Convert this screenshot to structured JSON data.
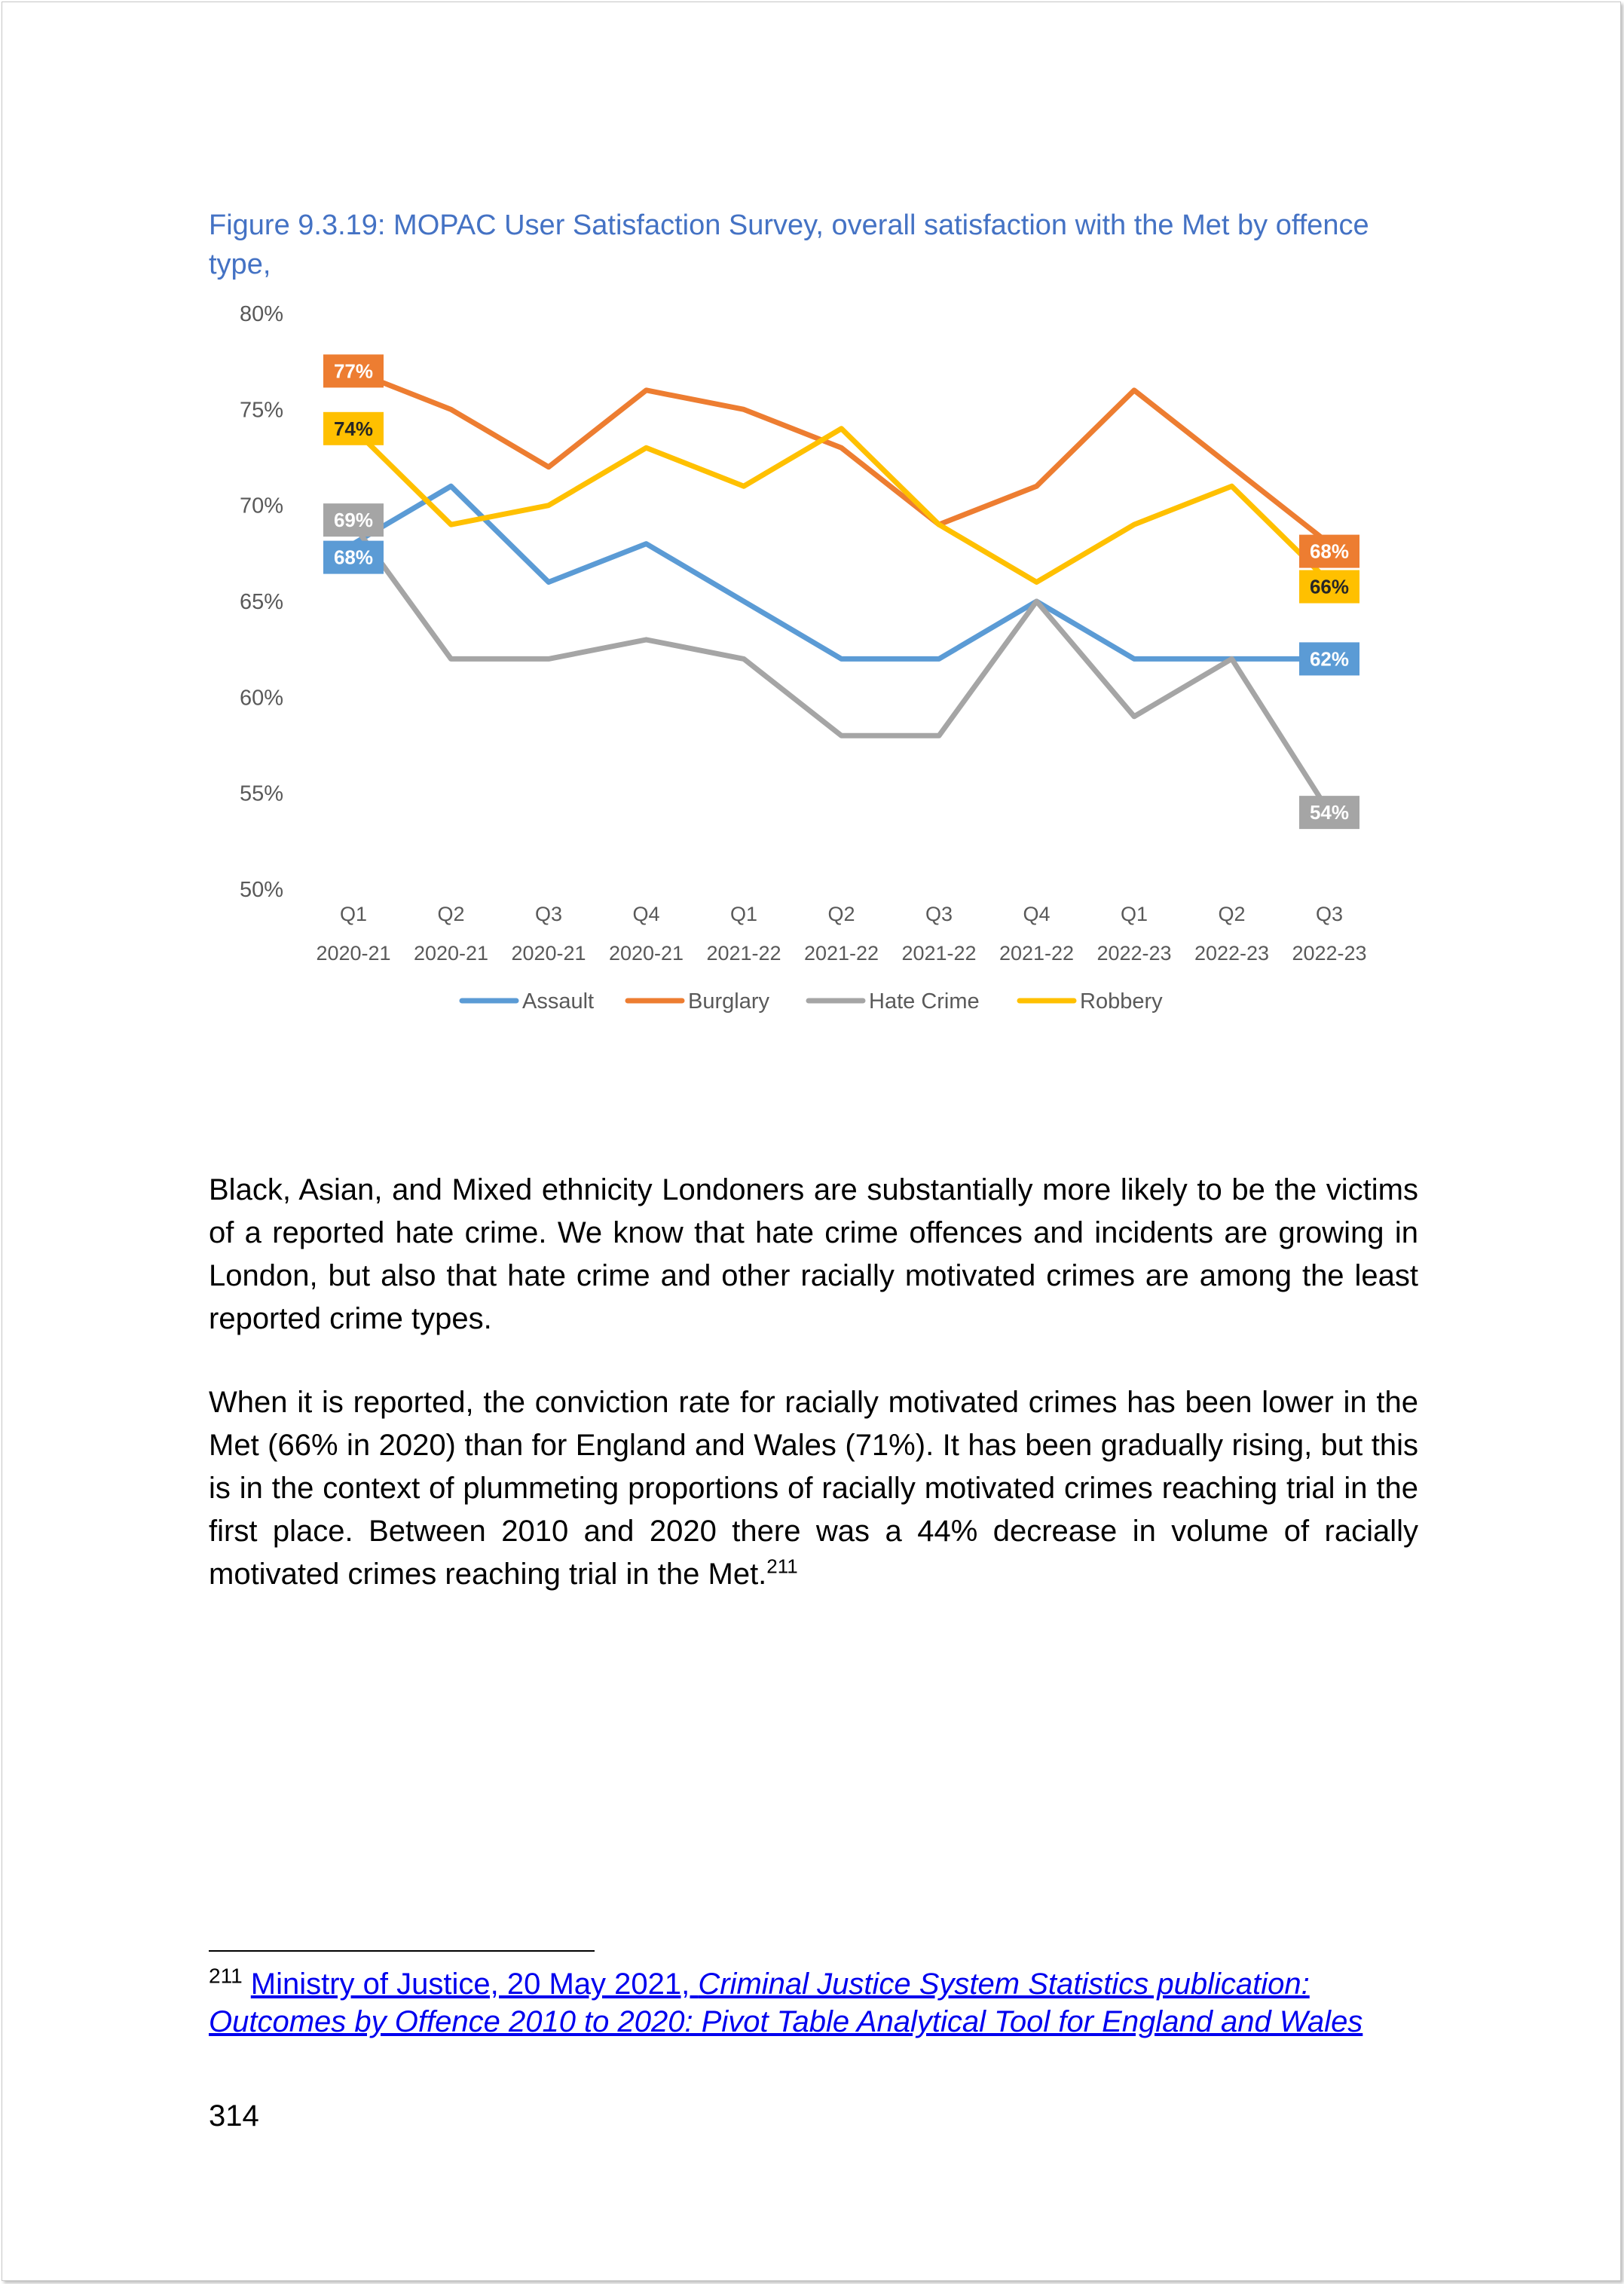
{
  "figure": {
    "title": "Figure 9.3.19: MOPAC User Satisfaction Survey, overall satisfaction with the Met by offence type,"
  },
  "chart_data": {
    "type": "line",
    "title": "",
    "xlabel": "",
    "ylabel": "",
    "categories": [
      [
        "Q1",
        "2020-21"
      ],
      [
        "Q2",
        "2020-21"
      ],
      [
        "Q3",
        "2020-21"
      ],
      [
        "Q4",
        "2020-21"
      ],
      [
        "Q1",
        "2021-22"
      ],
      [
        "Q2",
        "2021-22"
      ],
      [
        "Q3",
        "2021-22"
      ],
      [
        "Q4",
        "2021-22"
      ],
      [
        "Q1",
        "2022-23"
      ],
      [
        "Q2",
        "2022-23"
      ],
      [
        "Q3",
        "2022-23"
      ]
    ],
    "yticks": [
      "50%",
      "55%",
      "60%",
      "65%",
      "70%",
      "75%",
      "80%"
    ],
    "ylim": [
      50,
      80
    ],
    "grid": false,
    "legend_position": "bottom",
    "series": [
      {
        "name": "Assault",
        "color": "#5b9bd5",
        "values": [
          68,
          71,
          66,
          68,
          65,
          62,
          62,
          65,
          62,
          62,
          62
        ],
        "labels": {
          "0": "68%",
          "10": "62%"
        }
      },
      {
        "name": "Burglary",
        "color": "#ed7d31",
        "values": [
          77,
          75,
          72,
          76,
          75,
          73,
          69,
          71,
          76,
          72,
          68
        ],
        "labels": {
          "0": "77%",
          "10": "68%"
        }
      },
      {
        "name": "Hate Crime",
        "color": "#a5a5a5",
        "values": [
          69,
          62,
          62,
          63,
          62,
          58,
          58,
          65,
          59,
          62,
          54
        ],
        "labels": {
          "0": "69%",
          "10": "54%"
        }
      },
      {
        "name": "Robbery",
        "color": "#ffc000",
        "values": [
          74,
          69,
          70,
          73,
          71,
          74,
          69,
          66,
          69,
          71,
          66
        ],
        "labels": {
          "0": "74%",
          "10": "66%"
        }
      }
    ]
  },
  "body": {
    "paragraph1": "Black, Asian, and Mixed ethnicity Londoners are substantially more likely to be the victims of a reported hate crime. We know that hate crime offences and incidents are growing in London, but also that hate crime and other racially motivated crimes are among the least reported crime types.",
    "paragraph2": "When it is reported, the conviction rate for racially motivated crimes has been lower in the Met (66% in 2020) than for England and Wales (71%). It has been gradually rising, but this is in the context of plummeting proportions of racially motivated crimes reaching trial in the first place. Between 2010 and 2020 there was a 44% decrease in volume of racially motivated crimes reaching trial in the Met.",
    "paragraph2_ref": "211"
  },
  "footnote": {
    "number": "211",
    "link_plain": "Ministry of Justice, 20 May 2021, ",
    "link_italic": "Criminal Justice System Statistics publication: Outcomes by Offence 2010 to 2020: Pivot Table Analytical Tool for England and Wales"
  },
  "page_number": "314"
}
